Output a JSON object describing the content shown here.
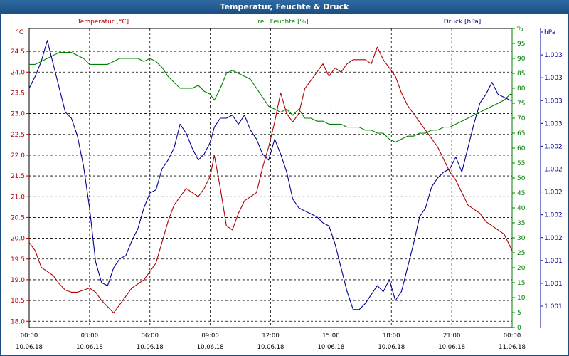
{
  "window": {
    "title": "Temperatur, Feuchte & Druck"
  },
  "colors": {
    "temperature": "#b00000",
    "humidity": "#008000",
    "pressure": "#000090",
    "grid": "#000000",
    "title_bg": "#1f5a92"
  },
  "chart_data": {
    "type": "line",
    "title": "Temperatur, Feuchte & Druck",
    "grid": true,
    "x_axis": {
      "ticks": [
        {
          "time": "00:00",
          "date": "10.06.18"
        },
        {
          "time": "03:00",
          "date": "10.06.18"
        },
        {
          "time": "06:00",
          "date": "10.06.18"
        },
        {
          "time": "09:00",
          "date": "10.06.18"
        },
        {
          "time": "12:00",
          "date": "10.06.18"
        },
        {
          "time": "15:00",
          "date": "10.06.18"
        },
        {
          "time": "18:00",
          "date": "10.06.18"
        },
        {
          "time": "21:00",
          "date": "10.06.18"
        },
        {
          "time": "00:00",
          "date": "11.06.18"
        }
      ],
      "range_hours": [
        0,
        24
      ]
    },
    "axes": {
      "temperature": {
        "title": "Temperatur [°C]",
        "unit": "°C",
        "range": [
          17.85,
          25.05
        ],
        "ticks": [
          "18.0",
          "18.5",
          "19.0",
          "19.5",
          "20.0",
          "20.5",
          "21.0",
          "21.5",
          "22.0",
          "22.5",
          "23.0",
          "23.5",
          "24.0",
          "24.5"
        ]
      },
      "humidity": {
        "title": "rel. Feuchte [%]",
        "unit": "%",
        "range": [
          0,
          100
        ],
        "ticks": [
          "0",
          "5",
          "10",
          "15",
          "20",
          "25",
          "30",
          "35",
          "40",
          "45",
          "50",
          "55",
          "60",
          "65",
          "70",
          "75",
          "80",
          "85",
          "90",
          "95",
          "%"
        ]
      },
      "pressure": {
        "title": "Druck [hPa]",
        "unit": "hPa",
        "range": [
          0,
          10
        ],
        "ticks": [
          "1.001",
          "1.001",
          "1.001",
          "1.002",
          "1.002",
          "1.002",
          "1.002",
          "1.002",
          "1.003",
          "1.003",
          "1.003",
          "1.003",
          "hPa"
        ]
      }
    },
    "series": [
      {
        "name": "Temperatur [°C]",
        "axis": "temperature",
        "x": [
          0,
          0.3,
          0.6,
          0.9,
          1.2,
          1.5,
          1.8,
          2.1,
          2.4,
          2.7,
          3.0,
          3.3,
          3.6,
          3.9,
          4.2,
          4.5,
          4.8,
          5.1,
          5.4,
          5.7,
          6.0,
          6.3,
          6.6,
          6.9,
          7.2,
          7.5,
          7.8,
          8.1,
          8.4,
          8.7,
          9.0,
          9.2,
          9.5,
          9.8,
          10.1,
          10.4,
          10.7,
          11.0,
          11.3,
          11.6,
          11.9,
          12.2,
          12.5,
          12.8,
          13.1,
          13.4,
          13.7,
          14.0,
          14.3,
          14.6,
          14.9,
          15.2,
          15.5,
          15.8,
          16.1,
          16.4,
          16.7,
          17.0,
          17.3,
          17.6,
          17.9,
          18.2,
          18.5,
          18.8,
          19.1,
          19.4,
          19.7,
          20.0,
          20.3,
          20.6,
          20.9,
          21.2,
          21.5,
          21.8,
          22.1,
          22.4,
          22.7,
          23.0,
          23.3,
          23.6,
          23.9,
          24.0
        ],
        "values": [
          19.9,
          19.7,
          19.3,
          19.2,
          19.1,
          18.9,
          18.75,
          18.7,
          18.7,
          18.75,
          18.8,
          18.7,
          18.5,
          18.35,
          18.2,
          18.4,
          18.6,
          18.8,
          18.9,
          19.0,
          19.2,
          19.4,
          19.9,
          20.4,
          20.8,
          21.0,
          21.2,
          21.1,
          21.0,
          21.2,
          21.5,
          22.0,
          21.2,
          20.3,
          20.2,
          20.6,
          20.9,
          21.0,
          21.1,
          21.7,
          22.2,
          22.8,
          23.5,
          23.0,
          22.8,
          23.0,
          23.6,
          23.8,
          24.0,
          24.2,
          23.9,
          24.1,
          24.0,
          24.2,
          24.3,
          24.3,
          24.3,
          24.2,
          24.6,
          24.3,
          24.1,
          23.9,
          23.5,
          23.2,
          23.0,
          22.8,
          22.6,
          22.4,
          22.2,
          21.9,
          21.6,
          21.4,
          21.1,
          20.8,
          20.7,
          20.6,
          20.4,
          20.3,
          20.2,
          20.1,
          19.8,
          19.7
        ]
      },
      {
        "name": "rel. Feuchte [%]",
        "axis": "humidity",
        "x": [
          0,
          0.3,
          0.6,
          0.9,
          1.2,
          1.5,
          1.8,
          2.1,
          2.4,
          2.7,
          3.0,
          3.3,
          3.6,
          3.9,
          4.2,
          4.5,
          4.8,
          5.1,
          5.4,
          5.7,
          6.0,
          6.3,
          6.6,
          6.9,
          7.2,
          7.5,
          7.8,
          8.1,
          8.4,
          8.7,
          9.0,
          9.2,
          9.5,
          9.8,
          10.1,
          10.4,
          10.7,
          11.0,
          11.3,
          11.6,
          11.9,
          12.2,
          12.5,
          12.8,
          13.1,
          13.4,
          13.7,
          14.0,
          14.3,
          14.6,
          14.9,
          15.2,
          15.5,
          15.8,
          16.1,
          16.4,
          16.7,
          17.0,
          17.3,
          17.6,
          17.9,
          18.2,
          18.5,
          18.8,
          19.1,
          19.4,
          19.7,
          20.0,
          20.3,
          20.6,
          20.9,
          21.2,
          21.5,
          21.8,
          22.1,
          22.4,
          22.7,
          23.0,
          23.3,
          23.6,
          23.9,
          24.0
        ],
        "values": [
          88,
          88,
          89,
          90,
          91,
          92,
          92,
          92,
          91,
          90,
          88,
          88,
          88,
          88,
          89,
          90,
          90,
          90,
          90,
          89,
          90,
          89,
          87,
          84,
          82,
          80,
          80,
          80,
          81,
          79,
          78,
          76,
          80,
          85,
          86,
          85,
          84,
          83,
          80,
          77,
          74,
          73,
          72,
          73,
          71,
          73,
          70,
          70,
          69,
          69,
          68,
          68,
          68,
          67,
          67,
          67,
          66,
          66,
          65,
          65,
          63,
          62,
          63,
          64,
          64,
          65,
          65,
          66,
          66,
          67,
          67,
          68,
          69,
          70,
          71,
          72,
          73,
          74,
          75,
          76,
          78,
          78
        ]
      },
      {
        "name": "Druck [hPa]",
        "axis": "pressure",
        "x": [
          0,
          0.3,
          0.6,
          0.9,
          1.2,
          1.5,
          1.8,
          2.1,
          2.4,
          2.7,
          3.0,
          3.3,
          3.6,
          3.9,
          4.2,
          4.5,
          4.8,
          5.1,
          5.4,
          5.7,
          6.0,
          6.3,
          6.6,
          6.9,
          7.2,
          7.5,
          7.8,
          8.1,
          8.4,
          8.7,
          9.0,
          9.2,
          9.5,
          9.8,
          10.1,
          10.4,
          10.7,
          11.0,
          11.3,
          11.6,
          11.9,
          12.2,
          12.5,
          12.8,
          13.1,
          13.4,
          13.7,
          14.0,
          14.3,
          14.6,
          14.9,
          15.2,
          15.5,
          15.8,
          16.1,
          16.4,
          16.7,
          17.0,
          17.3,
          17.6,
          17.9,
          18.2,
          18.5,
          18.8,
          19.1,
          19.4,
          19.7,
          20.0,
          20.3,
          20.6,
          20.9,
          21.2,
          21.5,
          21.8,
          22.1,
          22.4,
          22.7,
          23.0,
          23.3,
          23.6,
          23.9,
          24.0
        ],
        "values": [
          8.0,
          8.4,
          8.9,
          9.6,
          8.8,
          8.0,
          7.2,
          7.0,
          6.4,
          5.4,
          4.0,
          2.2,
          1.5,
          1.4,
          2.0,
          2.3,
          2.4,
          2.9,
          3.3,
          4.0,
          4.5,
          4.6,
          5.3,
          5.6,
          6.0,
          6.8,
          6.5,
          6.0,
          5.6,
          5.8,
          6.2,
          6.7,
          7.0,
          7.0,
          7.1,
          6.8,
          7.1,
          6.6,
          6.3,
          5.8,
          5.6,
          6.3,
          5.8,
          5.2,
          4.3,
          4.0,
          3.9,
          3.8,
          3.7,
          3.5,
          3.4,
          2.8,
          2.0,
          1.2,
          0.6,
          0.6,
          0.8,
          1.1,
          1.4,
          1.2,
          1.6,
          0.9,
          1.2,
          2.0,
          2.8,
          3.7,
          4.0,
          4.7,
          5.0,
          5.2,
          5.3,
          5.7,
          5.2,
          6.0,
          6.8,
          7.5,
          7.8,
          8.2,
          7.8,
          7.7,
          7.6,
          7.6
        ]
      }
    ]
  }
}
